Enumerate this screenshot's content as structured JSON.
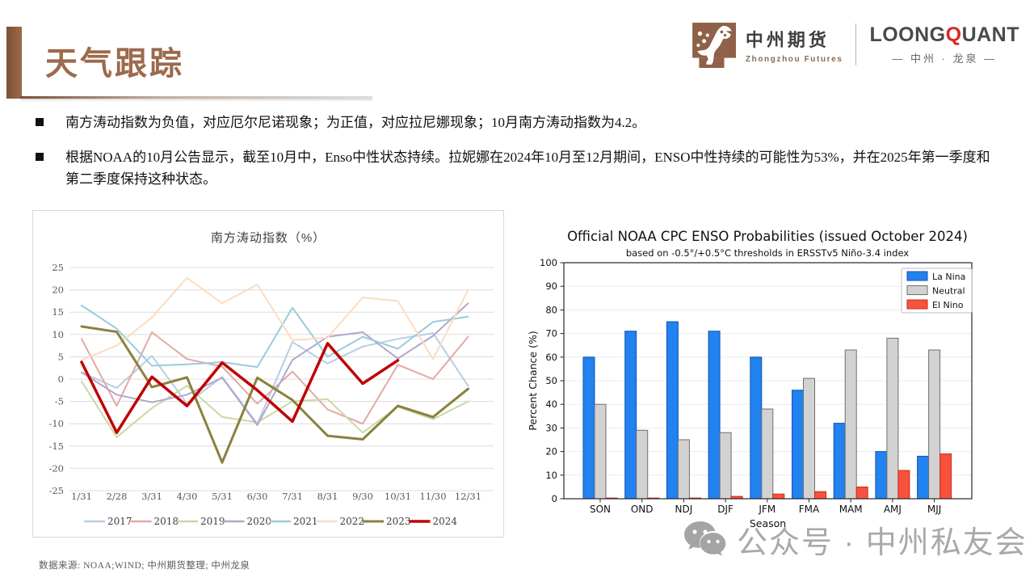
{
  "header": {
    "title": "天气跟踪",
    "logo1": {
      "name": "中州期货",
      "sub": "Zhongzhou Futures"
    },
    "logo2": {
      "part1": "LOONG",
      "part2": "Q",
      "part3": "UANT",
      "sub": "— 中州 · 龙泉 —"
    }
  },
  "bullets": [
    "南方涛动指数为负值，对应厄尔尼诺现象；为正值，对应拉尼娜现象；10月南方涛动指数为4.2。",
    "根据NOAA的10月公告显示，截至10月中，Enso中性状态持续。拉妮娜在2024年10月至12月期间，ENSO中性持续的可能性为53%，并在2025年第一季度和第二季度保持这种状态。"
  ],
  "watermark": {
    "text": "公众号 · 中州私友会",
    "icon": "wechat-icon"
  },
  "footer": {
    "source": "数据来源: NOAA;WIND; 中州期货整理; 中州龙泉"
  },
  "colors": {
    "accent_brown": "#9c6a4c",
    "brand_red": "#d42b26",
    "watermark_gray": "#a2a2a2",
    "la_nina_blue": "#2182f0",
    "neutral_gray": "#d2d2d2",
    "el_nino_red": "#f8523c",
    "soi_2024_red": "#c00000"
  },
  "chart_data": [
    {
      "type": "line",
      "title": "南方涛动指数（%）",
      "x": [
        "1/31",
        "2/28",
        "3/31",
        "4/30",
        "5/31",
        "6/30",
        "7/31",
        "8/31",
        "9/30",
        "10/31",
        "11/30",
        "12/31"
      ],
      "ylim": [
        -25,
        25
      ],
      "ytick_step": 5,
      "grid": true,
      "legend_position": "bottom",
      "series": [
        {
          "name": "2017",
          "color": "#b9cde4",
          "width": 2,
          "values": [
            1.5,
            -2,
            5.2,
            -5.5,
            0.5,
            -10,
            8.3,
            3.5,
            7.3,
            9,
            10.3,
            -1.5
          ]
        },
        {
          "name": "2018",
          "color": "#e2a9a5",
          "width": 2,
          "values": [
            9,
            -6,
            10.5,
            4.5,
            2.8,
            -5.5,
            1.7,
            -6.8,
            -10,
            3.2,
            0,
            9.5
          ]
        },
        {
          "name": "2019",
          "color": "#c8d9a6",
          "width": 2,
          "values": [
            -0.5,
            -13,
            -6.5,
            -1.5,
            -8.5,
            -9.7,
            -5,
            -4.5,
            -12,
            -6.2,
            -9,
            -5
          ]
        },
        {
          "name": "2020",
          "color": "#b1a7ce",
          "width": 2,
          "values": [
            1.5,
            -3.5,
            -5.2,
            -3.5,
            0.3,
            -10.3,
            4.3,
            9.5,
            10.5,
            4.6,
            9.7,
            17
          ]
        },
        {
          "name": "2021",
          "color": "#99ccdd",
          "width": 2,
          "values": [
            16.5,
            11.3,
            3,
            3.3,
            3.8,
            2.7,
            16,
            5,
            9.5,
            6.8,
            12.8,
            14
          ]
        },
        {
          "name": "2022",
          "color": "#fcdcc0",
          "width": 2,
          "values": [
            4.3,
            7.5,
            13.8,
            22.7,
            17,
            21.2,
            8.7,
            9.3,
            18.3,
            17.5,
            4.5,
            20
          ]
        },
        {
          "name": "2023",
          "color": "#8a813e",
          "width": 3,
          "values": [
            11.8,
            10.6,
            -1.8,
            0.4,
            -18.7,
            0.3,
            -4.7,
            -12.7,
            -13.5,
            -6,
            -8.5,
            -2.2
          ]
        },
        {
          "name": "2024",
          "color": "#c00000",
          "width": 3.5,
          "values": [
            3.8,
            -12,
            0.5,
            -6,
            3.7,
            -2.5,
            -9.5,
            8,
            -1,
            4.2,
            null,
            null
          ]
        }
      ]
    },
    {
      "type": "bar",
      "title": "Official NOAA CPC ENSO Probabilities (issued October 2024)",
      "subtitle": "based on -0.5°/+0.5°C thresholds in ERSSTv5 Niño-3.4 index",
      "categories": [
        "SON",
        "OND",
        "NDJ",
        "DJF",
        "JFM",
        "FMA",
        "MAM",
        "AMJ",
        "MJJ"
      ],
      "xlabel": "Season",
      "ylabel": "Percent Chance (%)",
      "ylim": [
        0,
        100
      ],
      "ytick_step": 10,
      "grid": true,
      "legend_position": "upper right",
      "series": [
        {
          "name": "La Nina",
          "color": "#2182f0",
          "edge": "#1552b4",
          "values": [
            60,
            71,
            75,
            71,
            60,
            46,
            32,
            20,
            18
          ]
        },
        {
          "name": "Neutral",
          "color": "#d2d2d2",
          "edge": "#6e6e6e",
          "values": [
            40,
            29,
            25,
            28,
            38,
            51,
            63,
            68,
            63
          ]
        },
        {
          "name": "El Nino",
          "color": "#f8523c",
          "edge": "#c03020",
          "values": [
            0,
            0,
            0,
            1,
            2,
            3,
            5,
            12,
            19
          ]
        }
      ]
    }
  ]
}
